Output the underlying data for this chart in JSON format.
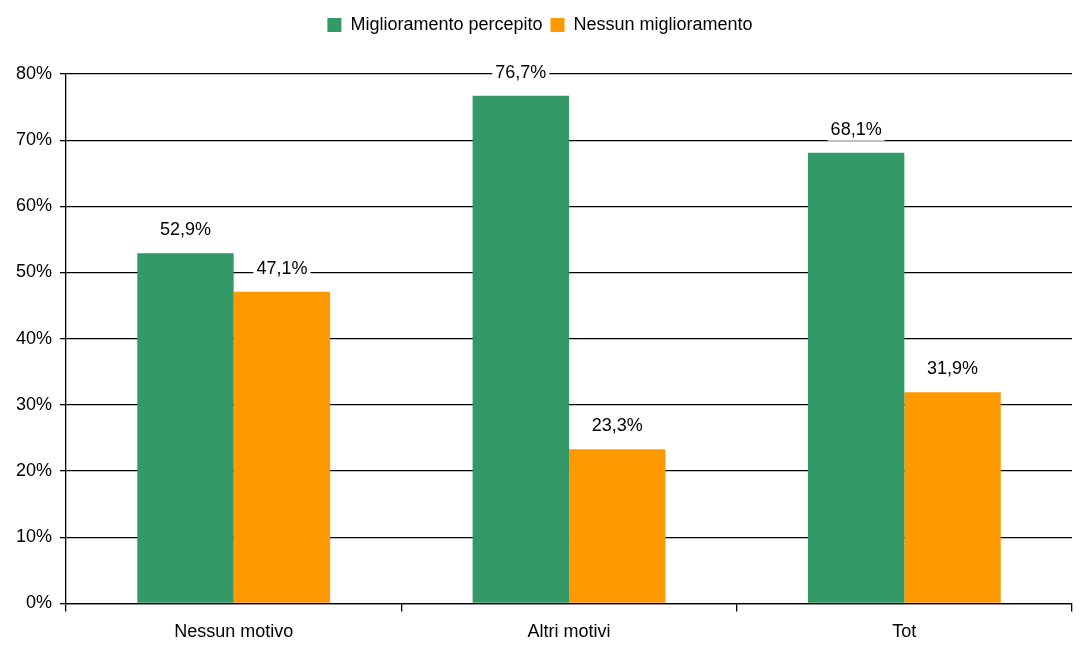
{
  "chart_data": {
    "type": "bar",
    "categories": [
      "Nessun motivo",
      "Altri motivi",
      "Tot"
    ],
    "series": [
      {
        "name": "Miglioramento percepito",
        "color": "#339966",
        "values": [
          52.9,
          76.7,
          68.1
        ],
        "value_labels": [
          "52,9%",
          "76,7%",
          "68,1%"
        ]
      },
      {
        "name": "Nessun miglioramento",
        "color": "#ff9900",
        "values": [
          47.1,
          23.3,
          31.9
        ],
        "value_labels": [
          "47,1%",
          "23,3%",
          "31,9%"
        ]
      }
    ],
    "ylim": [
      0,
      80
    ],
    "yticks": [
      {
        "value": 0,
        "label": "0%"
      },
      {
        "value": 10,
        "label": "10%"
      },
      {
        "value": 20,
        "label": "20%"
      },
      {
        "value": 30,
        "label": "30%"
      },
      {
        "value": 40,
        "label": "40%"
      },
      {
        "value": 50,
        "label": "50%"
      },
      {
        "value": 60,
        "label": "60%"
      },
      {
        "value": 70,
        "label": "70%"
      },
      {
        "value": 80,
        "label": "80%"
      }
    ],
    "grid": "y",
    "legend": "top"
  }
}
